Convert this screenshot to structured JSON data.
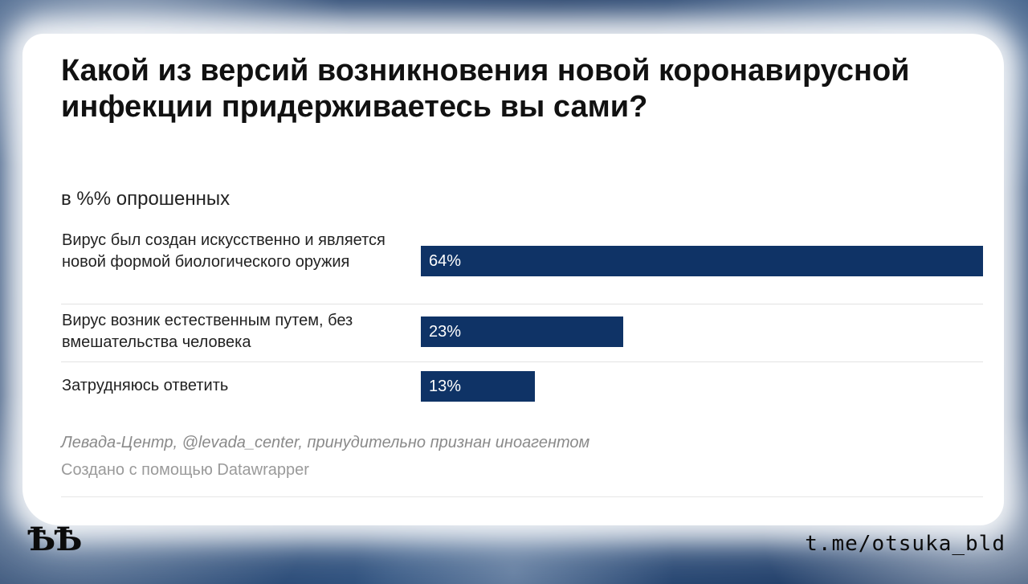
{
  "title": "Какой из версий возникновения новой коронавирусной инфекции придерживаетесь вы сами?",
  "subtitle": "в %% опрошенных",
  "chart_data": {
    "type": "bar",
    "orientation": "horizontal",
    "categories": [
      "Вирус был создан искусственно и является новой формой биологического оружия",
      "Вирус возник естественным путем, без вмешательства человека",
      "Затрудняюсь ответить"
    ],
    "values": [
      64,
      23,
      13
    ],
    "value_labels": [
      "64%",
      "23%",
      "13%"
    ],
    "unit": "%",
    "xlim": [
      0,
      64
    ],
    "bar_color": "#0f3366",
    "grid": false
  },
  "source": "Левада-Центр, @levada_center, принудительно признан иноагентом",
  "credit": "Создано с помощью Datawrapper",
  "logo_text": "ѢѢ",
  "channel": "t.me/otsuka_bld"
}
